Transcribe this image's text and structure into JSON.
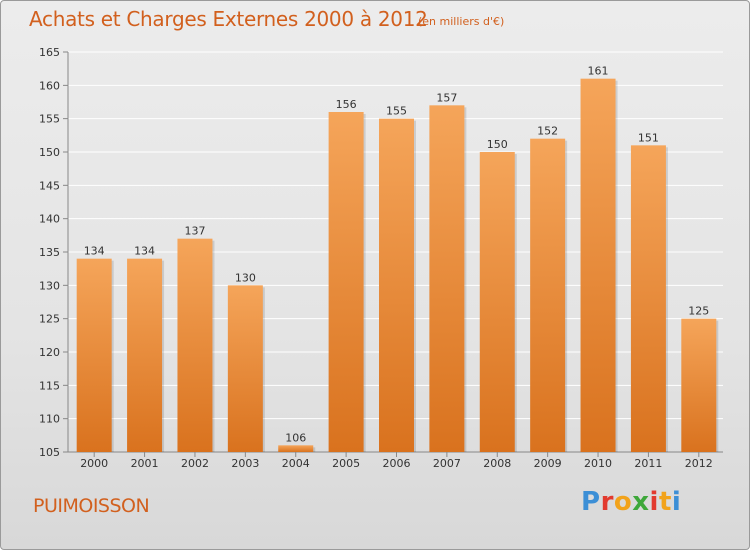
{
  "header": {
    "title": "Achats et Charges Externes 2000 à 2012",
    "subtitle": "(en milliers d'€)"
  },
  "footer": {
    "commune": "PUIMOISSON",
    "logo_letters": [
      "P",
      "r",
      "o",
      "x",
      "i",
      "t",
      "i"
    ],
    "logo_colors": [
      "#3c8fd6",
      "#e23a2e",
      "#f2a31b",
      "#3ea83a",
      "#e23a2e",
      "#f2a31b",
      "#3c8fd6"
    ]
  },
  "colors": {
    "accent": "#d2601e",
    "bar_top": "#f5a55a",
    "bar_bottom": "#d9721e",
    "grid": "#ffffff",
    "axis": "#888888"
  },
  "chart_data": {
    "type": "bar",
    "title": "Achats et Charges Externes 2000 à 2012",
    "subtitle": "(en milliers d'€)",
    "categories": [
      "2000",
      "2001",
      "2002",
      "2003",
      "2004",
      "2005",
      "2006",
      "2007",
      "2008",
      "2009",
      "2010",
      "2011",
      "2012"
    ],
    "values": [
      134,
      134,
      137,
      130,
      106,
      156,
      155,
      157,
      150,
      152,
      161,
      151,
      125
    ],
    "ylim": [
      105,
      165
    ],
    "yticks": [
      105,
      110,
      115,
      120,
      125,
      130,
      135,
      140,
      145,
      150,
      155,
      160,
      165
    ],
    "grid": true,
    "xlabel": "",
    "ylabel": ""
  }
}
